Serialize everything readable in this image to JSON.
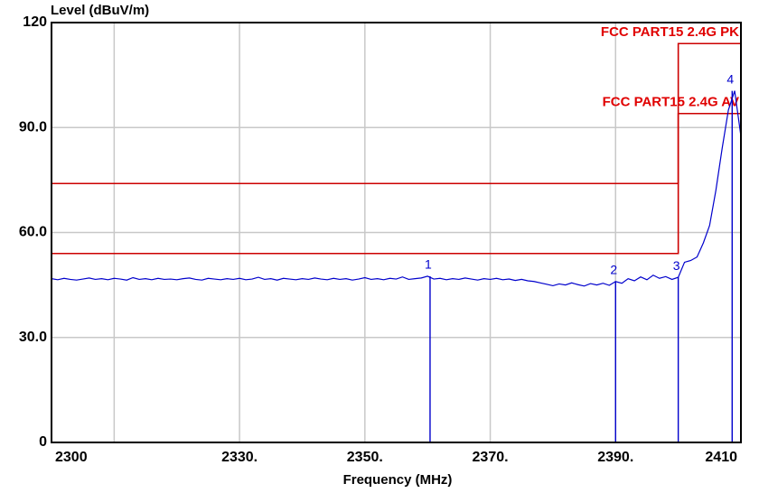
{
  "chart_data": {
    "type": "line",
    "ylabel": "Level (dBuV/m)",
    "xlabel": "Frequency (MHz)",
    "xlim": [
      2300,
      2410
    ],
    "ylim": [
      0,
      120
    ],
    "xticks": [
      {
        "value": 2300,
        "label": "2300"
      },
      {
        "value": 2330,
        "label": "2330."
      },
      {
        "value": 2350,
        "label": "2350."
      },
      {
        "value": 2370,
        "label": "2370."
      },
      {
        "value": 2390,
        "label": "2390."
      },
      {
        "value": 2410,
        "label": "2410"
      }
    ],
    "xgrid": [
      2310,
      2330,
      2350,
      2370,
      2390
    ],
    "yticks": [
      {
        "value": 0,
        "label": "0"
      },
      {
        "value": 30,
        "label": "30.0"
      },
      {
        "value": 60,
        "label": "60.0"
      },
      {
        "value": 90,
        "label": "90.0"
      },
      {
        "value": 120,
        "label": "120"
      }
    ],
    "ygrid": [
      30,
      60,
      90
    ],
    "grid": true,
    "trace": {
      "color": "#0000cc",
      "x": [
        2300,
        2301,
        2302,
        2303,
        2304,
        2305,
        2306,
        2307,
        2308,
        2309,
        2310,
        2311,
        2312,
        2313,
        2314,
        2315,
        2316,
        2317,
        2318,
        2319,
        2320,
        2321,
        2322,
        2323,
        2324,
        2325,
        2326,
        2327,
        2328,
        2329,
        2330,
        2331,
        2332,
        2333,
        2334,
        2335,
        2336,
        2337,
        2338,
        2339,
        2340,
        2341,
        2342,
        2343,
        2344,
        2345,
        2346,
        2347,
        2348,
        2349,
        2350,
        2351,
        2352,
        2353,
        2354,
        2355,
        2356,
        2357,
        2358,
        2359,
        2360,
        2361,
        2362,
        2363,
        2364,
        2365,
        2366,
        2367,
        2368,
        2369,
        2370,
        2371,
        2372,
        2373,
        2374,
        2375,
        2376,
        2377,
        2378,
        2379,
        2380,
        2381,
        2382,
        2383,
        2384,
        2385,
        2386,
        2387,
        2388,
        2389,
        2390,
        2391,
        2392,
        2393,
        2394,
        2395,
        2396,
        2397,
        2398,
        2399,
        2400,
        2401,
        2402,
        2403,
        2404,
        2405,
        2406,
        2407,
        2408,
        2409,
        2410
      ],
      "values": [
        46.8,
        46.5,
        46.9,
        46.6,
        46.4,
        46.7,
        47.0,
        46.6,
        46.8,
        46.5,
        46.9,
        46.7,
        46.4,
        47.1,
        46.6,
        46.8,
        46.5,
        46.9,
        46.6,
        46.7,
        46.5,
        46.8,
        47.0,
        46.6,
        46.4,
        46.9,
        46.7,
        46.5,
        46.8,
        46.6,
        46.9,
        46.5,
        46.7,
        47.2,
        46.6,
        46.8,
        46.4,
        46.9,
        46.7,
        46.5,
        46.8,
        46.6,
        47.0,
        46.7,
        46.5,
        46.9,
        46.6,
        46.8,
        46.4,
        46.7,
        47.1,
        46.6,
        46.8,
        46.5,
        46.9,
        46.7,
        47.3,
        46.6,
        46.8,
        47.0,
        47.5,
        46.7,
        46.9,
        46.5,
        46.8,
        46.6,
        47.0,
        46.7,
        46.4,
        46.8,
        46.6,
        46.9,
        46.5,
        46.7,
        46.3,
        46.6,
        46.2,
        46.0,
        45.6,
        45.2,
        44.8,
        45.3,
        45.0,
        45.6,
        45.1,
        44.7,
        45.4,
        45.0,
        45.5,
        44.9,
        46.0,
        45.5,
        46.8,
        46.2,
        47.3,
        46.5,
        47.8,
        46.9,
        47.4,
        46.6,
        47.2,
        51.5,
        52.0,
        53.0,
        57.0,
        62.0,
        72.0,
        84.0,
        95.0,
        100.5,
        87.5
      ]
    },
    "limits": [
      {
        "name": "FCC PART15 2.4G PK",
        "color": "#cc0000",
        "x": [
          2300,
          2400,
          2400,
          2410
        ],
        "values": [
          74,
          74,
          114,
          114
        ]
      },
      {
        "name": "FCC PART15 2.4G AV",
        "color": "#cc0000",
        "x": [
          2300,
          2400,
          2400,
          2410
        ],
        "values": [
          54,
          54,
          94,
          94
        ]
      }
    ],
    "markers": [
      {
        "label": "1",
        "x": 2360.4,
        "value": 47.5
      },
      {
        "label": "2",
        "x": 2390,
        "value": 46.0
      },
      {
        "label": "3",
        "x": 2400,
        "value": 47.2
      },
      {
        "label": "4",
        "x": 2408.6,
        "value": 100.5
      }
    ]
  }
}
